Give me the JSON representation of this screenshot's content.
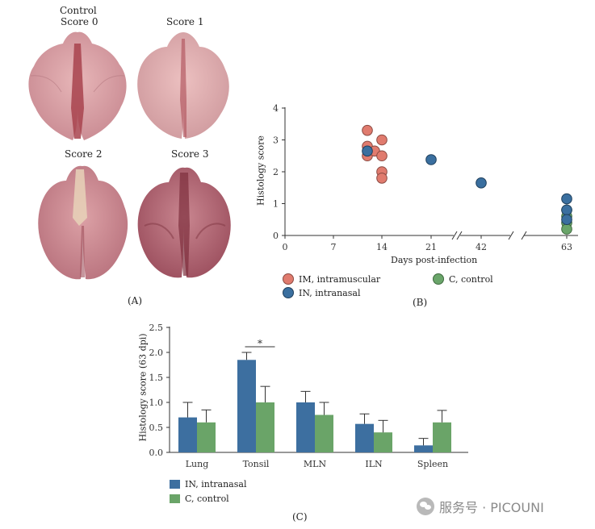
{
  "panel_a": {
    "label": "(A)",
    "images": [
      {
        "title_line1": "Control",
        "title_line2": "Score 0"
      },
      {
        "title_line1": "Score 1"
      },
      {
        "title_line1": "Score 2"
      },
      {
        "title_line1": "Score 3"
      }
    ]
  },
  "panel_b": {
    "label": "(B)"
  },
  "panel_c": {
    "label": "(C)"
  },
  "colors": {
    "im": "#e07b6e",
    "in": "#3a6f9f",
    "c": "#6aa56a",
    "bar_in": "#3d6fa0",
    "bar_c": "#6aa468"
  },
  "watermark": {
    "text": "服务号 · PICOUNI"
  },
  "chart_data": [
    {
      "id": "B",
      "type": "scatter",
      "title": "",
      "xlabel": "Days post-infection",
      "ylabel": "Histology score",
      "x_ticks": [
        "0",
        "7",
        "14",
        "21",
        "42",
        "63"
      ],
      "y_ticks": [
        "0",
        "1",
        "2",
        "3",
        "4"
      ],
      "ylim": [
        0,
        4
      ],
      "axis_breaks_after": [
        "21",
        "42"
      ],
      "legend": [
        {
          "key": "im",
          "label": "IM, intramuscular"
        },
        {
          "key": "c",
          "label": "C, control"
        },
        {
          "key": "in",
          "label": "IN, intranasal"
        }
      ],
      "series": [
        {
          "name": "IM, intramuscular",
          "key": "im",
          "points": [
            {
              "x": "12",
              "y": 3.3
            },
            {
              "x": "12",
              "y": 2.8
            },
            {
              "x": "12",
              "y": 2.5
            },
            {
              "x": "13",
              "y": 2.65
            },
            {
              "x": "14",
              "y": 3.0
            },
            {
              "x": "14",
              "y": 2.5
            },
            {
              "x": "14",
              "y": 2.0
            },
            {
              "x": "14",
              "y": 1.8
            }
          ]
        },
        {
          "name": "C, control",
          "key": "c",
          "points": [
            {
              "x": "63",
              "y": 0.8
            },
            {
              "x": "63",
              "y": 0.6
            },
            {
              "x": "63",
              "y": 0.4
            },
            {
              "x": "63",
              "y": 0.2
            }
          ]
        },
        {
          "name": "IN, intranasal",
          "key": "in",
          "points": [
            {
              "x": "12",
              "y": 2.65
            },
            {
              "x": "21",
              "y": 2.38
            },
            {
              "x": "42",
              "y": 1.65
            },
            {
              "x": "63",
              "y": 1.15
            },
            {
              "x": "63",
              "y": 0.8
            },
            {
              "x": "63",
              "y": 0.5
            }
          ]
        }
      ]
    },
    {
      "id": "C",
      "type": "bar",
      "title": "",
      "xlabel": "",
      "ylabel": "Histology score (63 dpi)",
      "ylim": [
        0,
        2.5
      ],
      "y_ticks": [
        "0.0",
        "0.5",
        "1.0",
        "1.5",
        "2.0",
        "2.5"
      ],
      "categories": [
        "Lung",
        "Tonsil",
        "MLN",
        "ILN",
        "Spleen"
      ],
      "series": [
        {
          "name": "IN, intranasal",
          "key": "bar_in",
          "values": [
            0.7,
            1.85,
            1.0,
            0.57,
            0.14
          ],
          "errors": [
            0.3,
            0.15,
            0.22,
            0.2,
            0.14
          ]
        },
        {
          "name": "C, control",
          "key": "bar_c",
          "values": [
            0.6,
            1.0,
            0.75,
            0.4,
            0.6
          ],
          "errors": [
            0.25,
            0.32,
            0.25,
            0.24,
            0.24
          ]
        }
      ],
      "annotations": [
        {
          "category": "Tonsil",
          "text": "*"
        }
      ]
    }
  ]
}
